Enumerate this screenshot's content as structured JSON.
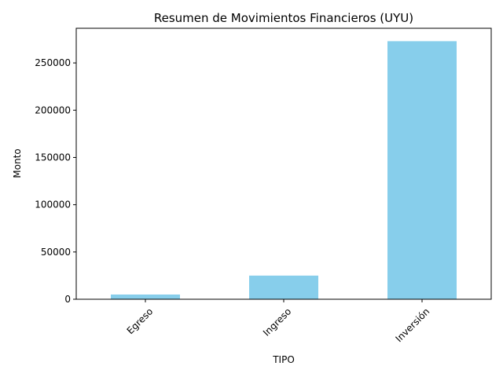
{
  "chart_data": {
    "type": "bar",
    "title": "Resumen de Movimientos Financieros (UYU)",
    "xlabel": "TIPO",
    "ylabel": "Monto",
    "categories": [
      "Egreso",
      "Ingreso",
      "Inversión"
    ],
    "values": [
      5000,
      25000,
      273000
    ],
    "ylim": [
      0,
      286650
    ],
    "yticks": [
      0,
      50000,
      100000,
      150000,
      200000,
      250000
    ],
    "bar_color": "#87ceeb",
    "grid": false,
    "legend": "none",
    "xtick_rotation": 45
  }
}
